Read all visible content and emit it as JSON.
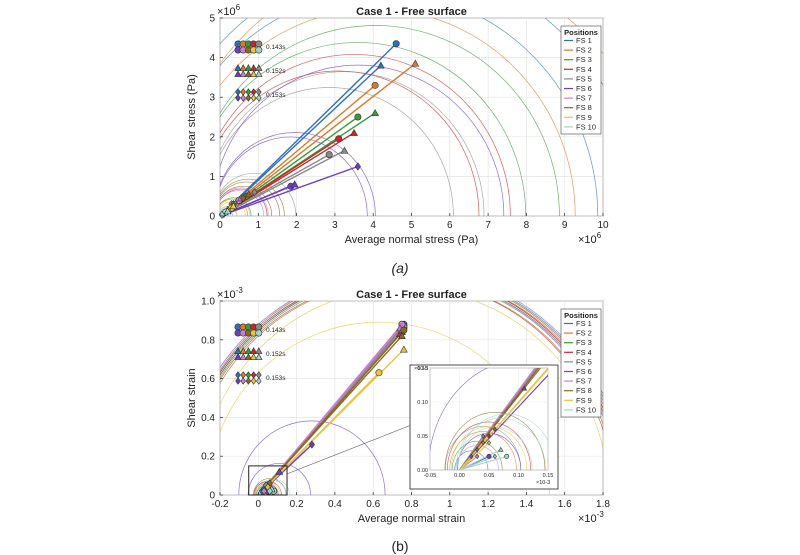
{
  "panel_labels": [
    "(a)",
    "(b)"
  ],
  "legend_title": "Positions",
  "legend_items": [
    "FS 1",
    "FS 2",
    "FS 3",
    "FS 4",
    "FS 5",
    "FS 6",
    "FS 7",
    "FS 8",
    "FS 9",
    "FS 10"
  ],
  "colors": [
    "#2f6fc0",
    "#d97a2b",
    "#3a9a3a",
    "#c62828",
    "#8a8a8a",
    "#6a3fc0",
    "#c97fd1",
    "#8a6a1e",
    "#e8c440",
    "#9fd4c8"
  ],
  "marker_legend": [
    {
      "shape": "circle",
      "label": "0.143s"
    },
    {
      "shape": "triangle",
      "label": "0.152s"
    },
    {
      "shape": "diamond",
      "label": "0.153s"
    }
  ],
  "chart_data": [
    {
      "type": "scatter",
      "title": "Case 1 - Free surface",
      "xlabel": "Average normal stress (Pa)",
      "ylabel": "Shear stress (Pa)",
      "x_exponent": "×10^6",
      "y_exponent": "×10^6",
      "xlim": [
        0,
        10
      ],
      "ylim": [
        0,
        5
      ],
      "xticks": [
        0,
        1,
        2,
        3,
        4,
        5,
        6,
        7,
        8,
        9,
        10
      ],
      "yticks": [
        0,
        1,
        2,
        3,
        4,
        5
      ],
      "grid": true,
      "legend_position": "top-right",
      "series": [
        {
          "name": "FS 1",
          "circle": [
            4.6,
            4.35
          ],
          "triangle": [
            4.2,
            3.8
          ],
          "diamond": [
            0.1,
            0.05
          ]
        },
        {
          "name": "FS 2",
          "circle": [
            4.05,
            3.3
          ],
          "triangle": [
            5.1,
            3.85
          ],
          "diamond": [
            0.3,
            0.3
          ]
        },
        {
          "name": "FS 3",
          "circle": [
            3.6,
            2.5
          ],
          "triangle": [
            4.05,
            2.6
          ],
          "diamond": [
            0.35,
            0.3
          ]
        },
        {
          "name": "FS 4",
          "circle": [
            3.1,
            1.95
          ],
          "triangle": [
            3.5,
            2.1
          ],
          "diamond": [
            0.55,
            0.4
          ]
        },
        {
          "name": "FS 5",
          "circle": [
            2.85,
            1.55
          ],
          "triangle": [
            3.25,
            1.65
          ],
          "diamond": [
            0.9,
            0.6
          ]
        },
        {
          "name": "FS 6",
          "circle": [
            1.85,
            0.75
          ],
          "triangle": [
            1.95,
            0.8
          ],
          "diamond": [
            3.6,
            1.25
          ]
        },
        {
          "name": "FS 7",
          "circle": [
            0.5,
            0.4
          ],
          "triangle": [
            0.55,
            0.45
          ],
          "diamond": [
            0.15,
            0.1
          ]
        },
        {
          "name": "FS 8",
          "circle": [
            0.7,
            0.5
          ],
          "triangle": [
            0.75,
            0.55
          ],
          "diamond": [
            0.6,
            0.45
          ]
        },
        {
          "name": "FS 9",
          "circle": [
            0.3,
            0.2
          ],
          "triangle": [
            0.35,
            0.25
          ],
          "diamond": [
            0.2,
            0.15
          ]
        },
        {
          "name": "FS 10",
          "circle": [
            0.15,
            0.1
          ],
          "triangle": [
            0.2,
            0.12
          ],
          "diamond": [
            0.05,
            0.03
          ]
        }
      ],
      "circles_max_x": [
        9.0,
        9.0,
        6.4,
        5.6,
        7.1,
        4.1,
        3.8,
        3.3,
        3.0,
        2.5
      ]
    },
    {
      "type": "scatter",
      "title": "Case 1 - Free surface",
      "xlabel": "Average normal strain",
      "ylabel": "Shear strain",
      "x_exponent": "×10^-3",
      "y_exponent": "×10^-3",
      "xlim": [
        -0.2,
        1.8
      ],
      "ylim": [
        0,
        1.0
      ],
      "xticks": [
        -0.2,
        0,
        0.2,
        0.4,
        0.6,
        0.8,
        1,
        1.2,
        1.4,
        1.6,
        1.8
      ],
      "xtick_labels": [
        "-0.2",
        "0",
        "0.2",
        "0.4",
        "0.6",
        "0.8",
        "1",
        "1.2",
        "1.4",
        "1.6",
        "1.8"
      ],
      "yticks": [
        0,
        0.2,
        0.4,
        0.6,
        0.8,
        1.0
      ],
      "ytick_labels": [
        "0",
        "0.2",
        "0.4",
        "0.6",
        "0.8",
        "1.0"
      ],
      "grid": true,
      "legend_position": "top-right",
      "series": [
        {
          "name": "FS 1",
          "circle": [
            0.76,
            0.88
          ],
          "triangle": [
            0.75,
            0.85
          ],
          "diamond": [
            0.02,
            0.02
          ]
        },
        {
          "name": "FS 2",
          "circle": [
            0.76,
            0.87
          ],
          "triangle": [
            0.75,
            0.86
          ],
          "diamond": [
            0.04,
            0.04
          ]
        },
        {
          "name": "FS 3",
          "circle": [
            0.76,
            0.86
          ],
          "triangle": [
            0.75,
            0.84
          ],
          "diamond": [
            0.03,
            0.03
          ]
        },
        {
          "name": "FS 4",
          "circle": [
            0.75,
            0.86
          ],
          "triangle": [
            0.74,
            0.83
          ],
          "diamond": [
            0.05,
            0.05
          ]
        },
        {
          "name": "FS 5",
          "circle": [
            0.76,
            0.87
          ],
          "triangle": [
            0.75,
            0.85
          ],
          "diamond": [
            0.04,
            0.05
          ]
        },
        {
          "name": "FS 6",
          "circle": [
            0.05,
            0.02
          ],
          "triangle": [
            0.11,
            0.12
          ],
          "diamond": [
            0.28,
            0.26
          ]
        },
        {
          "name": "FS 7",
          "circle": [
            0.75,
            0.88
          ],
          "triangle": [
            0.74,
            0.86
          ],
          "diamond": [
            0.03,
            0.02
          ]
        },
        {
          "name": "FS 8",
          "circle": [
            0.76,
            0.85
          ],
          "triangle": [
            0.75,
            0.82
          ],
          "diamond": [
            0.06,
            0.06
          ]
        },
        {
          "name": "FS 9",
          "circle": [
            0.63,
            0.63
          ],
          "triangle": [
            0.76,
            0.75
          ],
          "diamond": [
            0.05,
            0.04
          ]
        },
        {
          "name": "FS 10",
          "circle": [
            0.08,
            0.02
          ],
          "triangle": [
            0.07,
            0.03
          ],
          "diamond": [
            0.06,
            0.02
          ]
        }
      ],
      "circles_max_x": [
        1.62,
        1.6,
        1.55,
        1.65,
        1.5,
        0.6,
        1.63,
        1.52,
        1.35,
        0.2
      ],
      "inset": {
        "xlim": [
          -0.05,
          0.15
        ],
        "ylim": [
          0,
          0.15
        ],
        "xticks": [
          -0.05,
          0,
          0.05,
          0.1,
          0.15
        ],
        "xtick_labels": [
          "-0.05",
          "0.00",
          "0.05",
          "0.10",
          "0.15"
        ],
        "yticks": [
          0,
          0.05,
          0.1,
          0.15
        ],
        "ytick_labels": [
          "0.00",
          "0.05",
          "0.10",
          "0.15"
        ],
        "x_exponent": "×10^-3",
        "y_exponent": "×10^-3"
      }
    }
  ]
}
